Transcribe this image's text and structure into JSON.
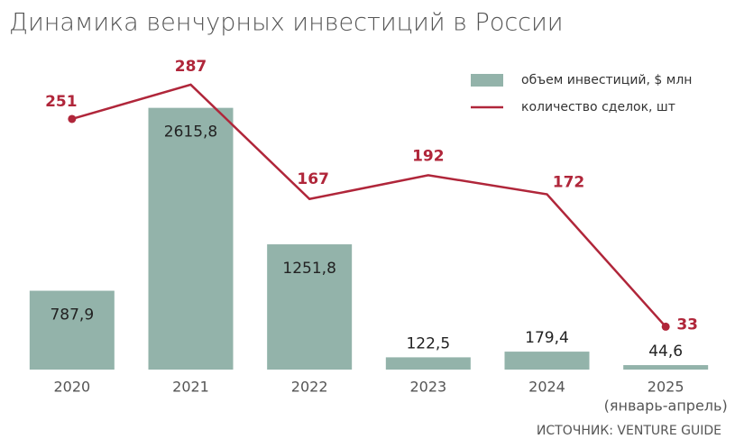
{
  "chart_data": {
    "type": "bar",
    "title": "Динамика венчурных инвестиций в России",
    "categories": [
      "2020",
      "2021",
      "2022",
      "2023",
      "2024",
      "2025"
    ],
    "category_note": "(январь-апрель)",
    "series": [
      {
        "name": "объем инвестиций, $ млн",
        "type": "bar",
        "color": "#93b3aa",
        "values": [
          787.9,
          2615.8,
          1251.8,
          122.5,
          179.4,
          44.6
        ],
        "value_labels": [
          "787,9",
          "2615,8",
          "1251,8",
          "122,5",
          "179,4",
          "44,6"
        ]
      },
      {
        "name": "количество сделок, шт",
        "type": "line",
        "axis": "y2",
        "color": "#b0263a",
        "values": [
          251,
          287,
          167,
          192,
          172,
          33
        ]
      }
    ],
    "ylim": [
      0,
      3000
    ],
    "y2lim": [
      -12,
      303
    ],
    "legend": "top-right",
    "source": "ИСТОЧНИК: VENTURE GUIDE"
  }
}
